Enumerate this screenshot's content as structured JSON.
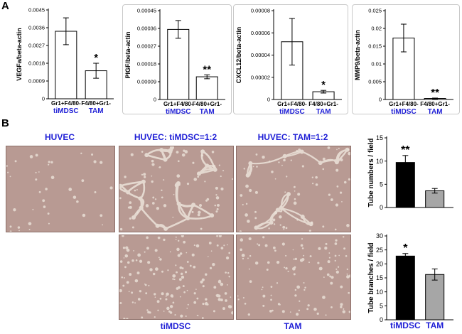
{
  "panel_labels": {
    "a": "A",
    "b": "B"
  },
  "colors": {
    "blue_text": "#1f1fd6",
    "bar_white": "#ffffff",
    "bar_black": "#000000",
    "bar_gray": "#a6a6a6",
    "photo_bg": "#b89a93",
    "tube_color": "#ece3da"
  },
  "images": {
    "titles": [
      "HUVEC",
      "HUVEC: tiMDSC=1:2",
      "HUVEC: TAM=1:2"
    ],
    "bottom_labels": [
      "tiMDSC",
      "TAM"
    ],
    "tiles": [
      {
        "name": "huvec-alone-micrograph",
        "pattern": "sparse"
      },
      {
        "name": "huvec-timdsc-micrograph",
        "pattern": "network"
      },
      {
        "name": "huvec-tam-micrograph",
        "pattern": "partial-network"
      },
      {
        "name": "timdsc-alone-micrograph",
        "pattern": "dots"
      },
      {
        "name": "tam-alone-micrograph",
        "pattern": "dots-sparse"
      }
    ]
  },
  "chart_data": [
    {
      "type": "bar",
      "ylabel": "VEGFa/beta-actin",
      "ylim": [
        0,
        0.0045
      ],
      "ticks": [
        "0",
        "0.0009",
        "0.0018",
        "0.0027",
        "0.0036",
        "0.0045"
      ],
      "categories": [
        [
          "Gr1+F4/80-",
          "tiMDSC"
        ],
        [
          "F4/80+Gr1-",
          "TAM"
        ]
      ],
      "values": [
        0.00342,
        0.00142
      ],
      "errors": [
        0.00068,
        0.00038
      ],
      "significance": [
        "",
        "*"
      ],
      "colors": [
        "#ffffff",
        "#ffffff"
      ],
      "framed": false
    },
    {
      "type": "bar",
      "ylabel": "PIGF/beta-actin",
      "ylim": [
        0,
        0.00045
      ],
      "ticks": [
        "0",
        "0.00009",
        "0.00018",
        "0.00027",
        "0.00036",
        "0.00045"
      ],
      "categories": [
        [
          "Gr1+F4/80-",
          "tiMDSC"
        ],
        [
          "F4/80+Gr1-",
          "TAM"
        ]
      ],
      "values": [
        0.000355,
        0.000115
      ],
      "errors": [
        4.5e-05,
        1e-05
      ],
      "significance": [
        "",
        "**"
      ],
      "colors": [
        "#ffffff",
        "#ffffff"
      ],
      "framed": true
    },
    {
      "type": "bar",
      "ylabel": "CXCL12/beta-actin",
      "ylim": [
        0,
        8e-05
      ],
      "ticks": [
        "0",
        "0.00002",
        "0.00004",
        "0.00006",
        "0.00008"
      ],
      "categories": [
        [
          "Gr1+F4/80-",
          "tiMDSC"
        ],
        [
          "F4/80+Gr1-",
          "TAM"
        ]
      ],
      "values": [
        5.2e-05,
        7e-06
      ],
      "errors": [
        2.1e-05,
        1.2e-06
      ],
      "significance": [
        "",
        "*"
      ],
      "colors": [
        "#ffffff",
        "#ffffff"
      ],
      "framed": true
    },
    {
      "type": "bar",
      "ylabel": "MMP9/beta-actin",
      "ylim": [
        0,
        0.025
      ],
      "ticks": [
        "0",
        "0.005",
        "0.01",
        "0.015",
        "0.02",
        "0.025"
      ],
      "categories": [
        [
          "Gr1+F4/80-",
          "tiMDSC"
        ],
        [
          "F4/80+Gr1-",
          "TAM"
        ]
      ],
      "values": [
        0.0173,
        0.0003
      ],
      "errors": [
        0.0039,
        0.0001
      ],
      "significance": [
        "",
        "**"
      ],
      "colors": [
        "#ffffff",
        "#ffffff"
      ],
      "framed": true
    },
    {
      "type": "bar",
      "ylabel": "Tube numbers / field",
      "ylim": [
        0,
        15
      ],
      "ticks": [
        "0",
        "5",
        "10",
        "15"
      ],
      "categories": [
        [
          "",
          ""
        ],
        [
          "",
          ""
        ]
      ],
      "values": [
        9.7,
        3.6
      ],
      "errors": [
        1.5,
        0.5
      ],
      "significance": [
        "**",
        ""
      ],
      "colors": [
        "#000000",
        "#a6a6a6"
      ],
      "framed": false
    },
    {
      "type": "bar",
      "ylabel": "Tube branches / field",
      "ylim": [
        0,
        30
      ],
      "ticks": [
        "0",
        "5",
        "10",
        "15",
        "20",
        "25",
        "30"
      ],
      "categories": [
        [
          "",
          "tiMDSC"
        ],
        [
          "",
          "TAM"
        ]
      ],
      "values": [
        22.8,
        16.2
      ],
      "errors": [
        0.9,
        2.0
      ],
      "significance": [
        "*",
        ""
      ],
      "colors": [
        "#000000",
        "#a6a6a6"
      ],
      "framed": false
    }
  ]
}
